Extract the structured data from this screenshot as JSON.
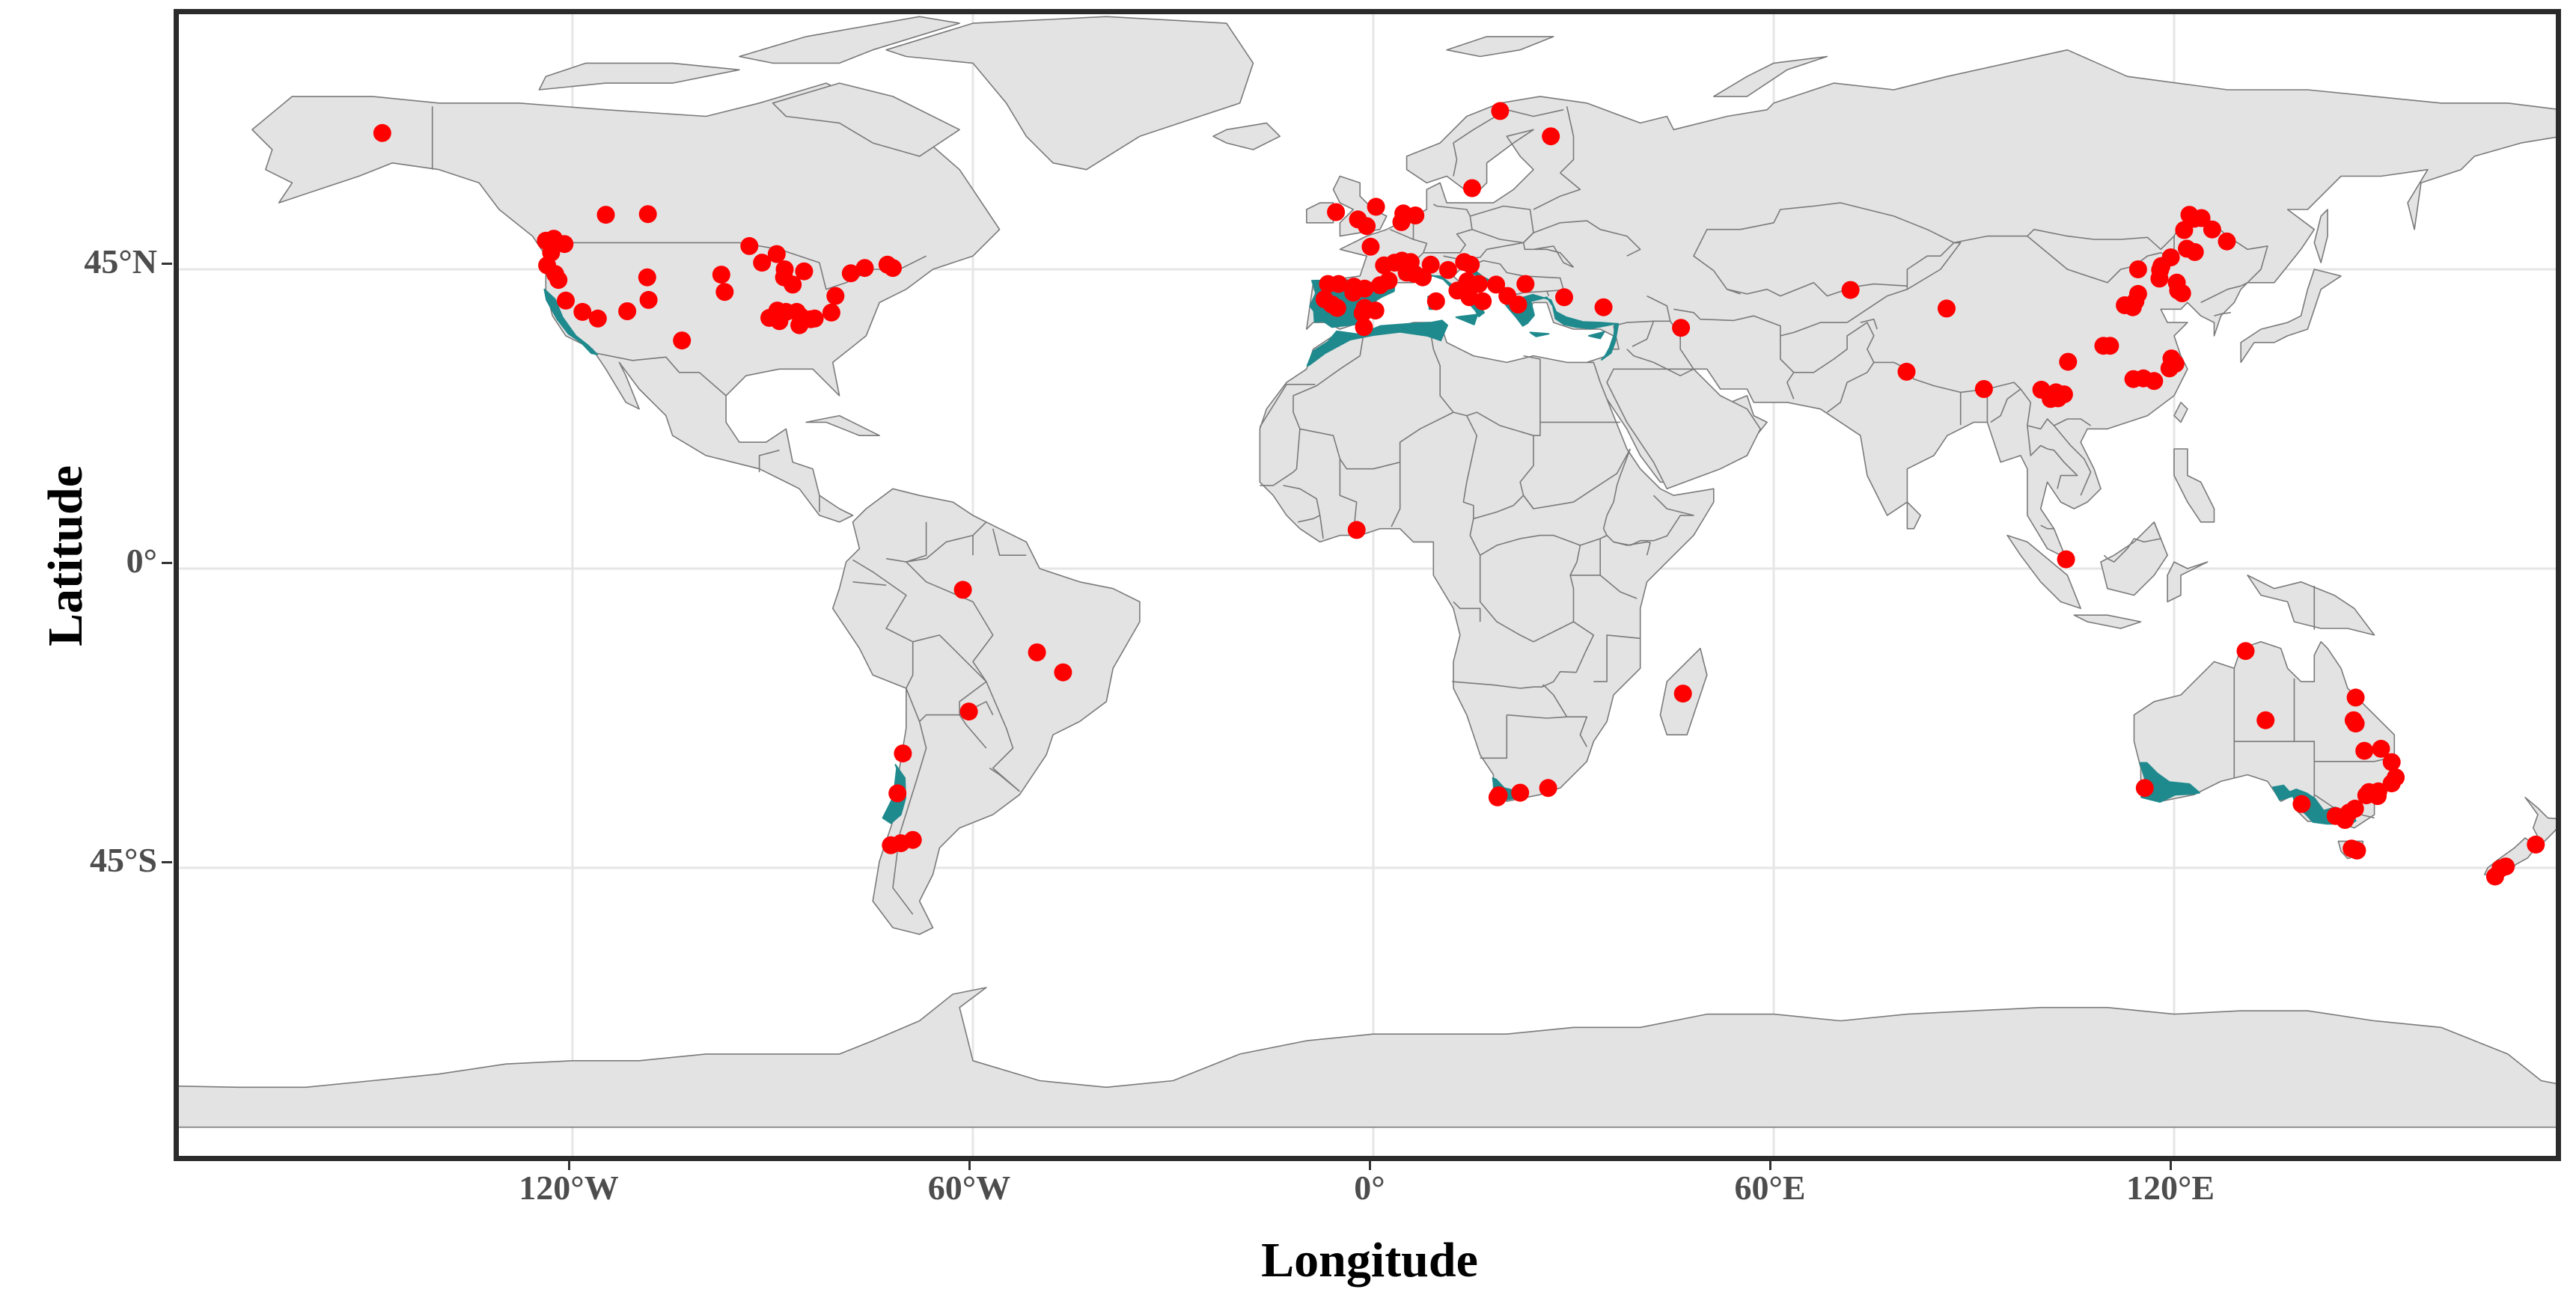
{
  "axes": {
    "x_title": "Longitude",
    "y_title": "Latitude",
    "x_ticks": [
      {
        "lon": -120,
        "label": "120°W"
      },
      {
        "lon": -60,
        "label": "60°W"
      },
      {
        "lon": 0,
        "label": "0°"
      },
      {
        "lon": 60,
        "label": "60°E"
      },
      {
        "lon": 120,
        "label": "120°E"
      }
    ],
    "y_ticks": [
      {
        "lat": 45,
        "label": "45°N"
      },
      {
        "lat": 0,
        "label": "0°"
      },
      {
        "lat": -45,
        "label": "45°S"
      }
    ],
    "lon_range": [
      -178,
      178
    ],
    "lat_range": [
      -84,
      84
    ],
    "grid": true
  },
  "colors": {
    "land": "#e3e3e3",
    "border": "#7a7a7a",
    "ocean": "#ffffff",
    "gridline": "#e6e6e6",
    "mediterranean_climate": "#1f8a8e",
    "points": "#ff0000",
    "frame": "#2b2b2b"
  },
  "layers": [
    "land",
    "country-borders",
    "mediterranean-climate-zones",
    "occurrence-points"
  ],
  "points": [
    [
      -148.5,
      65.5
    ],
    [
      -115,
      53.2
    ],
    [
      -108.7,
      53.3
    ],
    [
      -122.8,
      49.6
    ],
    [
      -124,
      49.3
    ],
    [
      -121.2,
      48.8
    ],
    [
      -123.2,
      47.5
    ],
    [
      -123.8,
      45.6
    ],
    [
      -122.6,
      44.3
    ],
    [
      -122.1,
      43.4
    ],
    [
      -121,
      40.3
    ],
    [
      -118.5,
      38.6
    ],
    [
      -116.2,
      37.6
    ],
    [
      -111.8,
      38.7
    ],
    [
      -108.6,
      40.4
    ],
    [
      -108.8,
      43.8
    ],
    [
      -97.7,
      44.2
    ],
    [
      -97.2,
      41.6
    ],
    [
      -103.6,
      34.3
    ],
    [
      -93.5,
      48.5
    ],
    [
      -91.6,
      46
    ],
    [
      -89.4,
      47.3
    ],
    [
      -88.2,
      45
    ],
    [
      -88.3,
      43.8
    ],
    [
      -87,
      42.7
    ],
    [
      -85.3,
      44.7
    ],
    [
      -89.3,
      38.8
    ],
    [
      -88,
      38.6
    ],
    [
      -86.4,
      38.6
    ],
    [
      -85.8,
      37.9
    ],
    [
      -90.5,
      37.7
    ],
    [
      -89,
      37.2
    ],
    [
      -86,
      36.6
    ],
    [
      -84.3,
      37.5
    ],
    [
      -83.7,
      37.6
    ],
    [
      -81.2,
      38.5
    ],
    [
      -80.6,
      41
    ],
    [
      -78.3,
      44.4
    ],
    [
      -76.2,
      45.2
    ],
    [
      -72.8,
      45.7
    ],
    [
      -72,
      45.2
    ],
    [
      -61.5,
      -3.2
    ],
    [
      -50.4,
      -12.6
    ],
    [
      -46.5,
      -15.6
    ],
    [
      -60.6,
      -21.5
    ],
    [
      -70.5,
      -27.8
    ],
    [
      -71.3,
      -33.8
    ],
    [
      -72.3,
      -41.6
    ],
    [
      -70.8,
      -41.3
    ],
    [
      -69,
      -40.8
    ],
    [
      -2.3,
      52.5
    ],
    [
      -1,
      51.5
    ],
    [
      -5.6,
      53.6
    ],
    [
      0.4,
      54.4
    ],
    [
      4.5,
      53.4
    ],
    [
      4.2,
      52.1
    ],
    [
      6.3,
      53.1
    ],
    [
      -0.4,
      48.4
    ],
    [
      1.6,
      45.6
    ],
    [
      3.2,
      46
    ],
    [
      4.3,
      46.3
    ],
    [
      4.8,
      45.5
    ],
    [
      5.6,
      46.1
    ],
    [
      5,
      44.5
    ],
    [
      6.2,
      44.3
    ],
    [
      2.3,
      43.3
    ],
    [
      1,
      42.6
    ],
    [
      -6.8,
      42.8
    ],
    [
      -5.2,
      42.8
    ],
    [
      -2.9,
      42.4
    ],
    [
      -1.3,
      42.1
    ],
    [
      -3,
      41.5
    ],
    [
      -7.3,
      40.5
    ],
    [
      -5.4,
      39.2
    ],
    [
      -6.2,
      39.7
    ],
    [
      -1.6,
      38.4
    ],
    [
      -1.3,
      39.2
    ],
    [
      0.3,
      38.8
    ],
    [
      -1.4,
      36.3
    ],
    [
      7.4,
      43.8
    ],
    [
      8.6,
      45.7
    ],
    [
      11.2,
      44.9
    ],
    [
      13.6,
      46.1
    ],
    [
      14.6,
      45.7
    ],
    [
      14.1,
      43.2
    ],
    [
      15.8,
      42.8
    ],
    [
      18.4,
      42.7
    ],
    [
      12.6,
      41.8
    ],
    [
      14.4,
      40.8
    ],
    [
      16.4,
      40.2
    ],
    [
      9.4,
      40.2
    ],
    [
      20.1,
      41
    ],
    [
      21.7,
      39.7
    ],
    [
      22.8,
      42.8
    ],
    [
      28.6,
      40.8
    ],
    [
      34.5,
      39.3
    ],
    [
      46.1,
      36.2
    ],
    [
      14.8,
      57.2
    ],
    [
      19,
      68.8
    ],
    [
      26.6,
      65
    ],
    [
      22,
      -33.7
    ],
    [
      18.8,
      -34.1
    ],
    [
      18.6,
      -34.4
    ],
    [
      26.2,
      -33
    ],
    [
      46.4,
      -18.8
    ],
    [
      -2.5,
      5.8
    ],
    [
      71.5,
      41.9
    ],
    [
      85.9,
      39.1
    ],
    [
      79.9,
      29.6
    ],
    [
      91.5,
      27
    ],
    [
      100.1,
      26.9
    ],
    [
      101.5,
      25.5
    ],
    [
      102.6,
      25.6
    ],
    [
      103.5,
      26.2
    ],
    [
      102.3,
      26.5
    ],
    [
      104.1,
      31.1
    ],
    [
      103.8,
      1.4
    ],
    [
      109.4,
      33.5
    ],
    [
      110.4,
      33.5
    ],
    [
      112.6,
      39.6
    ],
    [
      113.8,
      39.3
    ],
    [
      114.2,
      40.2
    ],
    [
      114.6,
      41.3
    ],
    [
      114.6,
      45
    ],
    [
      118.1,
      45.5
    ],
    [
      117.9,
      44.9
    ],
    [
      119.5,
      46.8
    ],
    [
      120.4,
      43
    ],
    [
      121.5,
      50.9
    ],
    [
      123,
      52.6
    ],
    [
      122.3,
      53.2
    ],
    [
      124.1,
      52.7
    ],
    [
      125.7,
      51
    ],
    [
      127.9,
      49.2
    ],
    [
      123.1,
      47.6
    ],
    [
      121.9,
      48.1
    ],
    [
      120.6,
      41.8
    ],
    [
      121.2,
      41.4
    ],
    [
      117.8,
      43.6
    ],
    [
      113.9,
      28.5
    ],
    [
      115.4,
      28.6
    ],
    [
      117,
      28.2
    ],
    [
      119.3,
      30.1
    ],
    [
      120.2,
      30.8
    ],
    [
      119.6,
      31.6
    ],
    [
      130.7,
      -12.4
    ],
    [
      133.7,
      -22.8
    ],
    [
      115.6,
      -33
    ],
    [
      139.1,
      -35.4
    ],
    [
      147.2,
      -19.4
    ],
    [
      146.9,
      -22.8
    ],
    [
      147.2,
      -23.3
    ],
    [
      148.5,
      -27.4
    ],
    [
      151,
      -27.1
    ],
    [
      152.6,
      -29.1
    ],
    [
      153.2,
      -31.4
    ],
    [
      152.6,
      -32.3
    ],
    [
      150.6,
      -33.5
    ],
    [
      150.5,
      -34.2
    ],
    [
      149.2,
      -33.6
    ],
    [
      148.8,
      -34.1
    ],
    [
      147.1,
      -36.1
    ],
    [
      146.2,
      -36.7
    ],
    [
      145.6,
      -37.8
    ],
    [
      144.2,
      -37.2
    ],
    [
      146.6,
      -42.1
    ],
    [
      147.4,
      -42.4
    ],
    [
      168.1,
      -46.3
    ],
    [
      168.9,
      -45.1
    ],
    [
      169.7,
      -44.8
    ],
    [
      174.2,
      -41.5
    ]
  ],
  "mediterranean_zones": [
    [
      [
        -124.2,
        42
      ],
      [
        -122.6,
        40.5
      ],
      [
        -121.5,
        37.8
      ],
      [
        -119.5,
        35
      ],
      [
        -117.6,
        33.5
      ],
      [
        -116.3,
        32.2
      ],
      [
        -117.2,
        32.4
      ],
      [
        -118.7,
        34
      ],
      [
        -120.6,
        35.3
      ],
      [
        -122.3,
        37.5
      ],
      [
        -123.9,
        40.4
      ]
    ],
    [
      [
        -71.6,
        -29.5
      ],
      [
        -70.2,
        -31.5
      ],
      [
        -70.1,
        -34.5
      ],
      [
        -70.8,
        -37
      ],
      [
        -72.3,
        -38.3
      ],
      [
        -73.5,
        -37.5
      ],
      [
        -72.1,
        -34.7
      ],
      [
        -71.7,
        -32.5
      ],
      [
        -71.4,
        -30
      ]
    ],
    [
      [
        -9.2,
        43.3
      ],
      [
        -4,
        43.4
      ],
      [
        1,
        42.8
      ],
      [
        3.2,
        42.6
      ],
      [
        3.1,
        41.7
      ],
      [
        0.5,
        40.5
      ],
      [
        -0.2,
        38.9
      ],
      [
        0.1,
        38.5
      ],
      [
        -1.9,
        36.8
      ],
      [
        -4.7,
        36.5
      ],
      [
        -6.2,
        36.3
      ],
      [
        -7.5,
        37.2
      ],
      [
        -8.8,
        37.1
      ],
      [
        -8.9,
        38.7
      ],
      [
        -9.5,
        39.5
      ],
      [
        -8.6,
        41.4
      ]
    ],
    [
      [
        -9.9,
        30.5
      ],
      [
        -9,
        32.7
      ],
      [
        -6.8,
        34.1
      ],
      [
        -5.5,
        35.7
      ],
      [
        -2,
        35.2
      ],
      [
        1.1,
        36.5
      ],
      [
        5.2,
        36.8
      ],
      [
        8.7,
        37
      ],
      [
        10.3,
        37.3
      ],
      [
        11.1,
        36.6
      ],
      [
        10.1,
        34.3
      ],
      [
        8.1,
        35
      ],
      [
        4,
        35.6
      ],
      [
        0,
        35.1
      ],
      [
        -3.5,
        34.4
      ],
      [
        -7.2,
        32.4
      ],
      [
        -9.6,
        30.6
      ]
    ],
    [
      [
        4,
        43.6
      ],
      [
        6.2,
        43.1
      ],
      [
        7.7,
        43.9
      ],
      [
        8.2,
        44.1
      ],
      [
        10.2,
        43.9
      ],
      [
        12.1,
        42.4
      ],
      [
        14.2,
        41.1
      ],
      [
        15.6,
        40.1
      ],
      [
        16.6,
        38.5
      ],
      [
        15.8,
        37.9
      ],
      [
        15.3,
        38.8
      ],
      [
        13.9,
        40.4
      ],
      [
        12.1,
        41.8
      ],
      [
        10.5,
        43.5
      ],
      [
        8.4,
        44.2
      ],
      [
        5.7,
        43.2
      ]
    ],
    [
      [
        13.1,
        37.9
      ],
      [
        15.6,
        38.2
      ],
      [
        15.1,
        36.7
      ],
      [
        12.4,
        37.8
      ]
    ],
    [
      [
        8.2,
        40.9
      ],
      [
        9.8,
        41.1
      ],
      [
        9.6,
        39
      ],
      [
        8.4,
        39
      ]
    ],
    [
      [
        13.6,
        45.3
      ],
      [
        15.2,
        44.2
      ],
      [
        17.5,
        43.1
      ],
      [
        19.5,
        41.8
      ],
      [
        19.3,
        40.4
      ],
      [
        20.2,
        39.2
      ],
      [
        21.4,
        37.8
      ],
      [
        22.4,
        36.5
      ],
      [
        23.1,
        36.9
      ],
      [
        24.1,
        38.1
      ],
      [
        23.6,
        40.2
      ],
      [
        26,
        40.8
      ],
      [
        26.9,
        39.5
      ],
      [
        27.3,
        37.6
      ],
      [
        28.6,
        36.7
      ],
      [
        30.4,
        36.3
      ],
      [
        32.6,
        36.1
      ],
      [
        35.2,
        36.6
      ],
      [
        36.2,
        36.8
      ],
      [
        36.1,
        35.2
      ],
      [
        35.4,
        33.2
      ],
      [
        34.8,
        32.1
      ],
      [
        34.2,
        31.4
      ],
      [
        35.6,
        32.4
      ],
      [
        36.2,
        34
      ],
      [
        36.7,
        36.8
      ],
      [
        34,
        37
      ],
      [
        31.4,
        37.1
      ],
      [
        28.9,
        37.8
      ],
      [
        27.4,
        38.6
      ],
      [
        26.6,
        40.4
      ],
      [
        23.9,
        41.2
      ],
      [
        21.2,
        40.4
      ],
      [
        19.6,
        42.3
      ],
      [
        16.1,
        44
      ],
      [
        14.5,
        45.6
      ]
    ],
    [
      [
        23.5,
        35.5
      ],
      [
        26.3,
        35.3
      ],
      [
        24.4,
        34.9
      ]
    ],
    [
      [
        32.3,
        35
      ],
      [
        34.6,
        35.6
      ],
      [
        34,
        34.6
      ]
    ],
    [
      [
        17.9,
        -31.5
      ],
      [
        18.2,
        -33.5
      ],
      [
        18.4,
        -34.4
      ],
      [
        19.8,
        -34.8
      ],
      [
        21.4,
        -34.5
      ],
      [
        22.5,
        -34.1
      ],
      [
        21.2,
        -33.4
      ],
      [
        19.6,
        -33
      ],
      [
        18.4,
        -31.7
      ]
    ],
    [
      [
        114.9,
        -29.2
      ],
      [
        115.7,
        -31.9
      ],
      [
        115.1,
        -33.6
      ],
      [
        115.1,
        -34.4
      ],
      [
        117.9,
        -35.1
      ],
      [
        120.2,
        -34
      ],
      [
        122.8,
        -33.9
      ],
      [
        123.8,
        -33.7
      ],
      [
        122.3,
        -32.4
      ],
      [
        119.3,
        -32.1
      ],
      [
        117.5,
        -30.8
      ],
      [
        115.9,
        -29.2
      ]
    ],
    [
      [
        134.8,
        -32.9
      ],
      [
        135.8,
        -34.8
      ],
      [
        137.8,
        -34.2
      ],
      [
        138.3,
        -35.7
      ],
      [
        139.7,
        -36.9
      ],
      [
        140.8,
        -38.1
      ],
      [
        142.9,
        -38.4
      ],
      [
        144.5,
        -38.4
      ],
      [
        145.8,
        -38.9
      ],
      [
        147.2,
        -37.9
      ],
      [
        146.5,
        -36.7
      ],
      [
        144.1,
        -35.9
      ],
      [
        142.4,
        -36.4
      ],
      [
        141.1,
        -34.6
      ],
      [
        139.9,
        -33.8
      ],
      [
        138.3,
        -33.2
      ],
      [
        137.3,
        -33.6
      ],
      [
        136.4,
        -32.6
      ]
    ]
  ]
}
